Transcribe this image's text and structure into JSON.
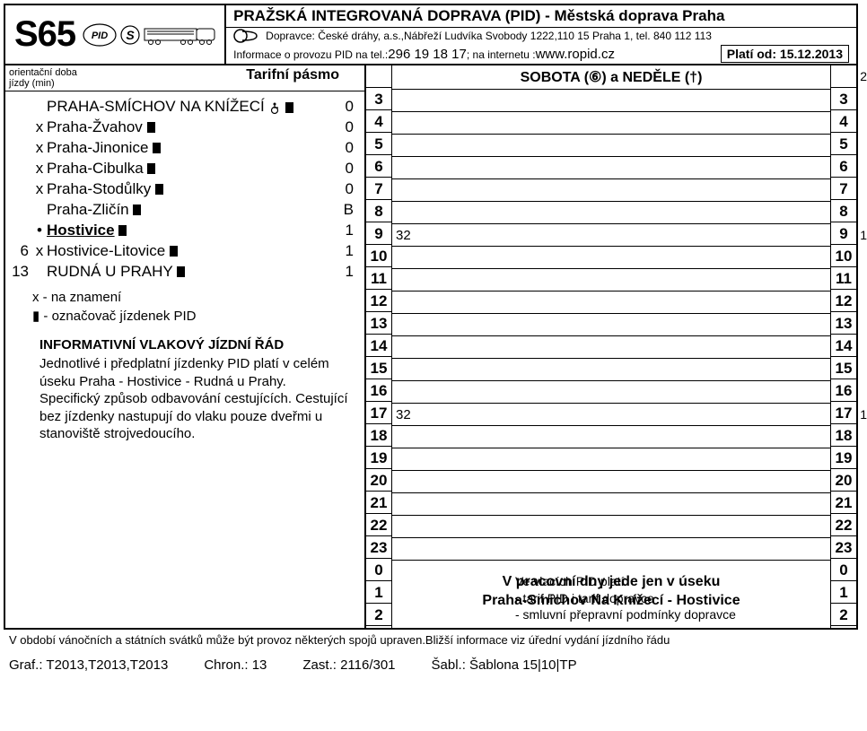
{
  "header": {
    "line": "S65",
    "title": "PRAŽSKÁ INTEGROVANÁ DOPRAVA (PID) - Městská doprava Praha",
    "carrier": "Dopravce: České dráhy, a.s.,Nábřeží Ludvíka Svobody 1222,110 15 Praha 1, tel. 840 112 113",
    "info_prefix": "Informace o provozu PID na  tel.:",
    "tel": " 296 19 18 17",
    "info_mid": "; na internetu : ",
    "web": "www.ropid.cz",
    "valid_label": "Platí od: ",
    "valid_date": "15.12.2013"
  },
  "left": {
    "head_l1": "orientační doba",
    "head_l2": "jízdy (min)",
    "head_r": "Tarifní pásmo",
    "stops": [
      {
        "time": "",
        "mark": "",
        "name": "PRAHA-SMÍCHOV NA KNÍŽECÍ",
        "wheel": true,
        "sq": true,
        "zone": "0",
        "terminal": true
      },
      {
        "time": "",
        "mark": "x",
        "name": "Praha-Žvahov",
        "sq": true,
        "zone": "0"
      },
      {
        "time": "",
        "mark": "x",
        "name": "Praha-Jinonice",
        "sq": true,
        "zone": "0"
      },
      {
        "time": "",
        "mark": "x",
        "name": "Praha-Cibulka",
        "sq": true,
        "zone": "0"
      },
      {
        "time": "",
        "mark": "x",
        "name": "Praha-Stodůlky",
        "sq": true,
        "zone": "0"
      },
      {
        "time": "",
        "mark": "",
        "name": "Praha-Zličín",
        "sq": true,
        "zone": "B"
      },
      {
        "time": "",
        "mark": "•",
        "name": "Hostivice",
        "sq": true,
        "zone": "1",
        "bold": true,
        "underline": true
      },
      {
        "time": "6",
        "mark": "x",
        "name": "Hostivice-Litovice",
        "sq": true,
        "zone": "1"
      },
      {
        "time": "13",
        "mark": "",
        "name": "RUDNÁ U PRAHY",
        "sq": true,
        "zone": "1",
        "terminal": true
      }
    ],
    "legend": [
      "x - na znamení",
      "▮ - označovač jízdenek PID"
    ],
    "info_title": "INFORMATIVNÍ VLAKOVÝ JÍZDNÍ ŘÁD",
    "info_lines": [
      "Jednotlivé i předplatní jízdenky PID platí v celém úseku Praha - Hostivice - Rudná u Prahy.",
      "Specifický způsob odbavování cestujících. Cestující bez jízdenky nastupují do vlaku pouze dveřmi u stanoviště strojvedoucího."
    ]
  },
  "right": {
    "day_header": "SOBOTA (⑥) a NEDĚLE (†)",
    "page_top": "2",
    "hours_left": [
      "3",
      "4",
      "5",
      "6",
      "7",
      "8",
      "9",
      "10",
      "11",
      "12",
      "13",
      "14",
      "15",
      "16",
      "17",
      "18",
      "19",
      "20",
      "21",
      "22",
      "23",
      "0",
      "1",
      "2"
    ],
    "mins": {
      "9": "32",
      "17": "32"
    },
    "side_nums": {
      "9": "1",
      "17": "1"
    },
    "note_l1": "V pracovní dny jede jen v úseku",
    "note_l2": "Praha-Smíchov Na Knížecí - Hostivice",
    "bottom": [
      "Ve vlacích PID platí:",
      "- tarif PID i tarif dopravce",
      "- smluvní přepravní podmínky dopravce"
    ]
  },
  "footer": {
    "line": "V období vánočních a státních svátků může být provoz některých spojů upraven.Bližší informace viz úřední vydání jízdního řádu",
    "graf": "Graf.: T2013,T2013,T2013",
    "chron": "Chron.: 13",
    "zast": "Zast.: 2116/301",
    "sabl": "Šabl.: Šablona 15|10|TP"
  },
  "colors": {
    "border": "#000000",
    "bg": "#ffffff",
    "text": "#000000"
  }
}
